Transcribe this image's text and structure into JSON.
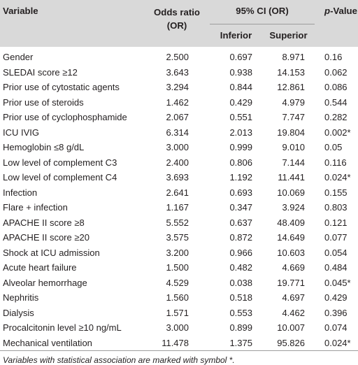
{
  "header": {
    "variable": "Variable",
    "odds_ratio": "Odds ratio",
    "odds_ratio_unit": "(OR)",
    "ci": "95% CI (OR)",
    "inferior": "Inferior",
    "superior": "Superior",
    "p_value_italic": "p",
    "p_value_rest": "-Value"
  },
  "rows": [
    {
      "variable": "Gender",
      "odds": "2.500",
      "inferior": "0.697",
      "superior": "8.971",
      "p": "0.16"
    },
    {
      "variable": "SLEDAI score ≥12",
      "odds": "3.643",
      "inferior": "0.938",
      "superior": "14.153",
      "p": "0.062"
    },
    {
      "variable": "Prior use of cytostatic agents",
      "odds": "3.294",
      "inferior": "0.844",
      "superior": "12.861",
      "p": "0.086"
    },
    {
      "variable": "Prior use of steroids",
      "odds": "1.462",
      "inferior": "0.429",
      "superior": "4.979",
      "p": "0.544"
    },
    {
      "variable": "Prior use of cyclophosphamide",
      "odds": "2.067",
      "inferior": "0.551",
      "superior": "7.747",
      "p": "0.282"
    },
    {
      "variable": "ICU IVIG",
      "odds": "6.314",
      "inferior": "2.013",
      "superior": "19.804",
      "p": "0.002*"
    },
    {
      "variable": "Hemoglobin ≤8 g/dL",
      "odds": "3.000",
      "inferior": "0.999",
      "superior": "9.010",
      "p": "0.05"
    },
    {
      "variable": "Low level of complement C3",
      "odds": "2.400",
      "inferior": "0.806",
      "superior": "7.144",
      "p": "0.116"
    },
    {
      "variable": "Low level of complement C4",
      "odds": "3.693",
      "inferior": "1.192",
      "superior": "11.441",
      "p": "0.024*"
    },
    {
      "variable": "Infection",
      "odds": "2.641",
      "inferior": "0.693",
      "superior": "10.069",
      "p": "0.155"
    },
    {
      "variable": "Flare + infection",
      "odds": "1.167",
      "inferior": "0.347",
      "superior": "3.924",
      "p": "0.803"
    },
    {
      "variable": "APACHE II score ≥8",
      "odds": "5.552",
      "inferior": "0.637",
      "superior": "48.409",
      "p": "0.121"
    },
    {
      "variable": "APACHE II score ≥20",
      "odds": "3.575",
      "inferior": "0.872",
      "superior": "14.649",
      "p": "0.077"
    },
    {
      "variable": "Shock at ICU admission",
      "odds": "3.200",
      "inferior": "0.966",
      "superior": "10.603",
      "p": "0.054"
    },
    {
      "variable": "Acute heart failure",
      "odds": "1.500",
      "inferior": "0.482",
      "superior": "4.669",
      "p": "0.484"
    },
    {
      "variable": "Alveolar hemorrhage",
      "odds": "4.529",
      "inferior": "0.038",
      "superior": "19.771",
      "p": "0.045*"
    },
    {
      "variable": "Nephritis",
      "odds": "1.560",
      "inferior": "0.518",
      "superior": "4.697",
      "p": "0.429"
    },
    {
      "variable": "Dialysis",
      "odds": "1.571",
      "inferior": "0.553",
      "superior": "4.462",
      "p": "0.396"
    },
    {
      "variable": "Procalcitonin level ≥10 ng/mL",
      "odds": "3.000",
      "inferior": "0.899",
      "superior": "10.007",
      "p": "0.074"
    },
    {
      "variable": "Mechanical ventilation",
      "odds": "11.478",
      "inferior": "1.375",
      "superior": "95.826",
      "p": "0.024*"
    }
  ],
  "footnote": "Variables with statistical association are marked with symbol *."
}
